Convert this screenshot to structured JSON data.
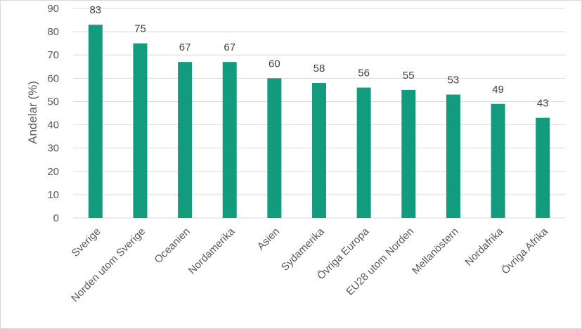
{
  "chart_data": {
    "type": "bar",
    "title": "",
    "xlabel": "",
    "ylabel": "Andelar (%)",
    "ylim": [
      0,
      90
    ],
    "yticks": [
      0,
      10,
      20,
      30,
      40,
      50,
      60,
      70,
      80,
      90
    ],
    "grid": true,
    "legend": "none",
    "bar_color": "#139B7E",
    "categories": [
      "Sverige",
      "Norden utom Sverige",
      "Oceanien",
      "Nordamerika",
      "Asien",
      "Sydamerika",
      "Övriga Europa",
      "EU28 utom Norden",
      "Mellanöstern",
      "Nordafrika",
      "Övriga Afrika"
    ],
    "values": [
      83,
      75,
      67,
      67,
      60,
      58,
      56,
      55,
      53,
      49,
      43
    ]
  }
}
